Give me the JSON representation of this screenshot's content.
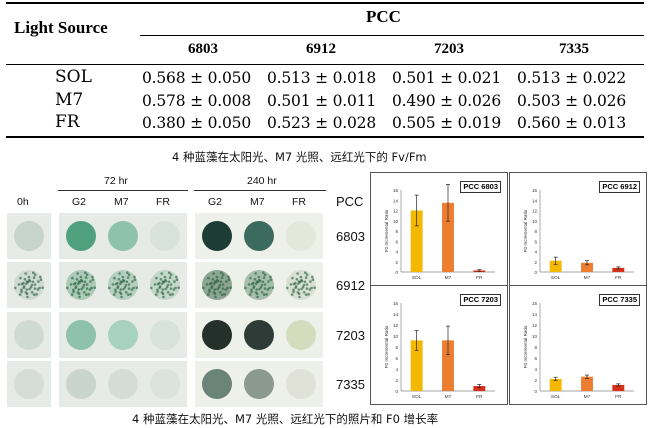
{
  "table": {
    "light_source_header": "Light Source",
    "pcc_header": "PCC",
    "columns": [
      "6803",
      "6912",
      "7203",
      "7335"
    ],
    "rows": [
      {
        "label": "SOL",
        "values": [
          "0.568 ± 0.050",
          "0.513 ± 0.018",
          "0.501 ± 0.021",
          "0.513 ± 0.022"
        ]
      },
      {
        "label": "M7",
        "values": [
          "0.578 ± 0.008",
          "0.501 ± 0.011",
          "0.490 ± 0.026",
          "0.503 ± 0.026"
        ]
      },
      {
        "label": "FR",
        "values": [
          "0.380 ± 0.050",
          "0.523 ± 0.028",
          "0.505 ± 0.019",
          "0.560 ± 0.013"
        ]
      }
    ]
  },
  "caption1": "4 种蓝藻在太阳光、M7 光照、远红光下的 Fv/Fm",
  "caption2": "4 种蓝藻在太阳光、M7 光照、远红光下的照片和 F0 增长率",
  "photo_grid": {
    "time_72": "72 hr",
    "time_240": "240 hr",
    "col_labels": [
      "0h",
      "G2",
      "M7",
      "FR",
      "G2",
      "M7",
      "FR"
    ],
    "pcc_label": "PCC",
    "strains": [
      "6803",
      "6912",
      "7203",
      "7335"
    ],
    "well_colors": [
      [
        "#c6d4cc",
        "#4fa07c",
        "#8fc2aa",
        "#d8e2dc",
        "#1d3d34",
        "#3c6a5c",
        "#e4e8da"
      ],
      [
        "#bcccc2",
        "#7aae90",
        "#8cb89e",
        "#a6c6b0",
        "#3e6a48",
        "#6c9678",
        "#c4d4c0"
      ],
      [
        "#d0dad4",
        "#8ec2ae",
        "#a8d2c0",
        "#d8e2dc",
        "#24302c",
        "#2e3c38",
        "#d4dcbe"
      ],
      [
        "#d6dcd8",
        "#c8d4cc",
        "#d4dcd6",
        "#dce2de",
        "#6a8478",
        "#8a9a8c",
        "#e0e2d8"
      ]
    ]
  },
  "bar_charts": {
    "chart_data": [
      {
        "type": "bar",
        "title": "PCC 6803",
        "categories": [
          "SOL",
          "M7",
          "FR"
        ],
        "values": [
          12,
          13.5,
          0.3
        ],
        "errors": [
          3,
          3.6,
          0.15
        ],
        "ylim": [
          0,
          16
        ],
        "yticks": [
          0,
          2,
          4,
          6,
          8,
          10,
          12,
          14,
          16
        ],
        "ylabel": "F0 Incremental Ratio",
        "colors": [
          "#f5b800",
          "#ed7d31",
          "#d73018"
        ]
      },
      {
        "type": "bar",
        "title": "PCC 6912",
        "categories": [
          "SOL",
          "M7",
          "FR"
        ],
        "values": [
          2.2,
          1.8,
          0.8
        ],
        "errors": [
          0.7,
          0.4,
          0.2
        ],
        "ylim": [
          0,
          16
        ],
        "yticks": [
          0,
          2,
          4,
          6,
          8,
          10,
          12,
          14,
          16
        ],
        "ylabel": "F0 Incremental Ratio",
        "colors": [
          "#f5b800",
          "#ed7d31",
          "#d73018"
        ]
      },
      {
        "type": "bar",
        "title": "PCC 7203",
        "categories": [
          "SOL",
          "M7",
          "FR"
        ],
        "values": [
          9.2,
          9.2,
          0.9
        ],
        "errors": [
          1.8,
          2.6,
          0.3
        ],
        "ylim": [
          0,
          16
        ],
        "yticks": [
          0,
          2,
          4,
          6,
          8,
          10,
          12,
          14,
          16
        ],
        "ylabel": "F0 Incremental Ratio",
        "colors": [
          "#f5b800",
          "#ed7d31",
          "#d73018"
        ]
      },
      {
        "type": "bar",
        "title": "PCC 7335",
        "categories": [
          "SOL",
          "M7",
          "FR"
        ],
        "values": [
          2.2,
          2.6,
          1.1
        ],
        "errors": [
          0.3,
          0.3,
          0.2
        ],
        "ylim": [
          0,
          16
        ],
        "yticks": [
          0,
          2,
          4,
          6,
          8,
          10,
          12,
          14,
          16
        ],
        "ylabel": "F0 Incremental Ratio",
        "colors": [
          "#f5b800",
          "#ed7d31",
          "#d73018"
        ]
      }
    ]
  }
}
